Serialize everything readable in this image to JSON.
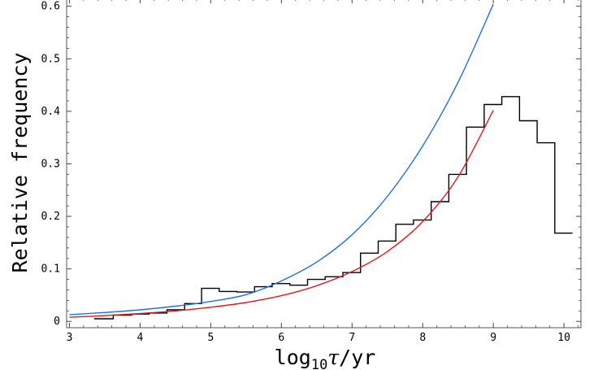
{
  "chart_data": {
    "type": "line",
    "title": "",
    "xlabel": {
      "base": "log",
      "subscript": "10",
      "var": "τ",
      "unit": "/yr"
    },
    "ylabel": "Relative frequency",
    "xlim": [
      2.96,
      10.24
    ],
    "ylim": [
      -0.012,
      0.615
    ],
    "x_ticks": [
      3,
      4,
      5,
      6,
      7,
      8,
      9,
      10
    ],
    "x_tick_labels": [
      "3",
      "4",
      "5",
      "6",
      "7",
      "8",
      "9",
      "10"
    ],
    "y_ticks": [
      0,
      0.1,
      0.2,
      0.3,
      0.4,
      0.5,
      0.6
    ],
    "y_tick_labels": [
      "0",
      "0.1",
      "0.2",
      "0.3",
      "0.4",
      "0.5",
      "0.6"
    ],
    "grid": false,
    "series": [
      {
        "kind": "step",
        "color": "#000000",
        "bins": [
          3.35,
          3.62,
          3.88,
          4.13,
          4.38,
          4.63,
          4.87,
          5.12,
          5.37,
          5.62,
          5.87,
          6.12,
          6.37,
          6.62,
          6.87,
          7.12,
          7.37,
          7.62,
          7.87,
          8.12,
          8.37,
          8.62,
          8.87,
          9.12,
          9.37,
          9.62,
          9.87,
          10.12
        ],
        "values": [
          0.005,
          0.012,
          0.014,
          0.016,
          0.022,
          0.034,
          0.063,
          0.057,
          0.056,
          0.066,
          0.072,
          0.069,
          0.08,
          0.085,
          0.093,
          0.13,
          0.153,
          0.185,
          0.193,
          0.228,
          0.28,
          0.37,
          0.413,
          0.428,
          0.382,
          0.34,
          0.168
        ]
      },
      {
        "kind": "curve",
        "color": "#1f6fe0",
        "x": [
          3.0,
          3.5,
          4.0,
          4.5,
          5.0,
          5.5,
          6.0,
          6.5,
          7.0,
          7.5,
          8.0,
          8.5,
          9.0
        ],
        "y": [
          0.013,
          0.017,
          0.022,
          0.029,
          0.038,
          0.051,
          0.077,
          0.113,
          0.165,
          0.238,
          0.334,
          0.455,
          0.604
        ]
      },
      {
        "kind": "curve",
        "color": "#e01a1a",
        "x": [
          3.0,
          3.5,
          4.0,
          4.5,
          5.0,
          5.5,
          6.0,
          6.5,
          7.0,
          7.5,
          8.0,
          8.5,
          9.0
        ],
        "y": [
          0.008,
          0.011,
          0.015,
          0.02,
          0.027,
          0.036,
          0.049,
          0.068,
          0.095,
          0.133,
          0.19,
          0.275,
          0.402
        ]
      }
    ]
  }
}
